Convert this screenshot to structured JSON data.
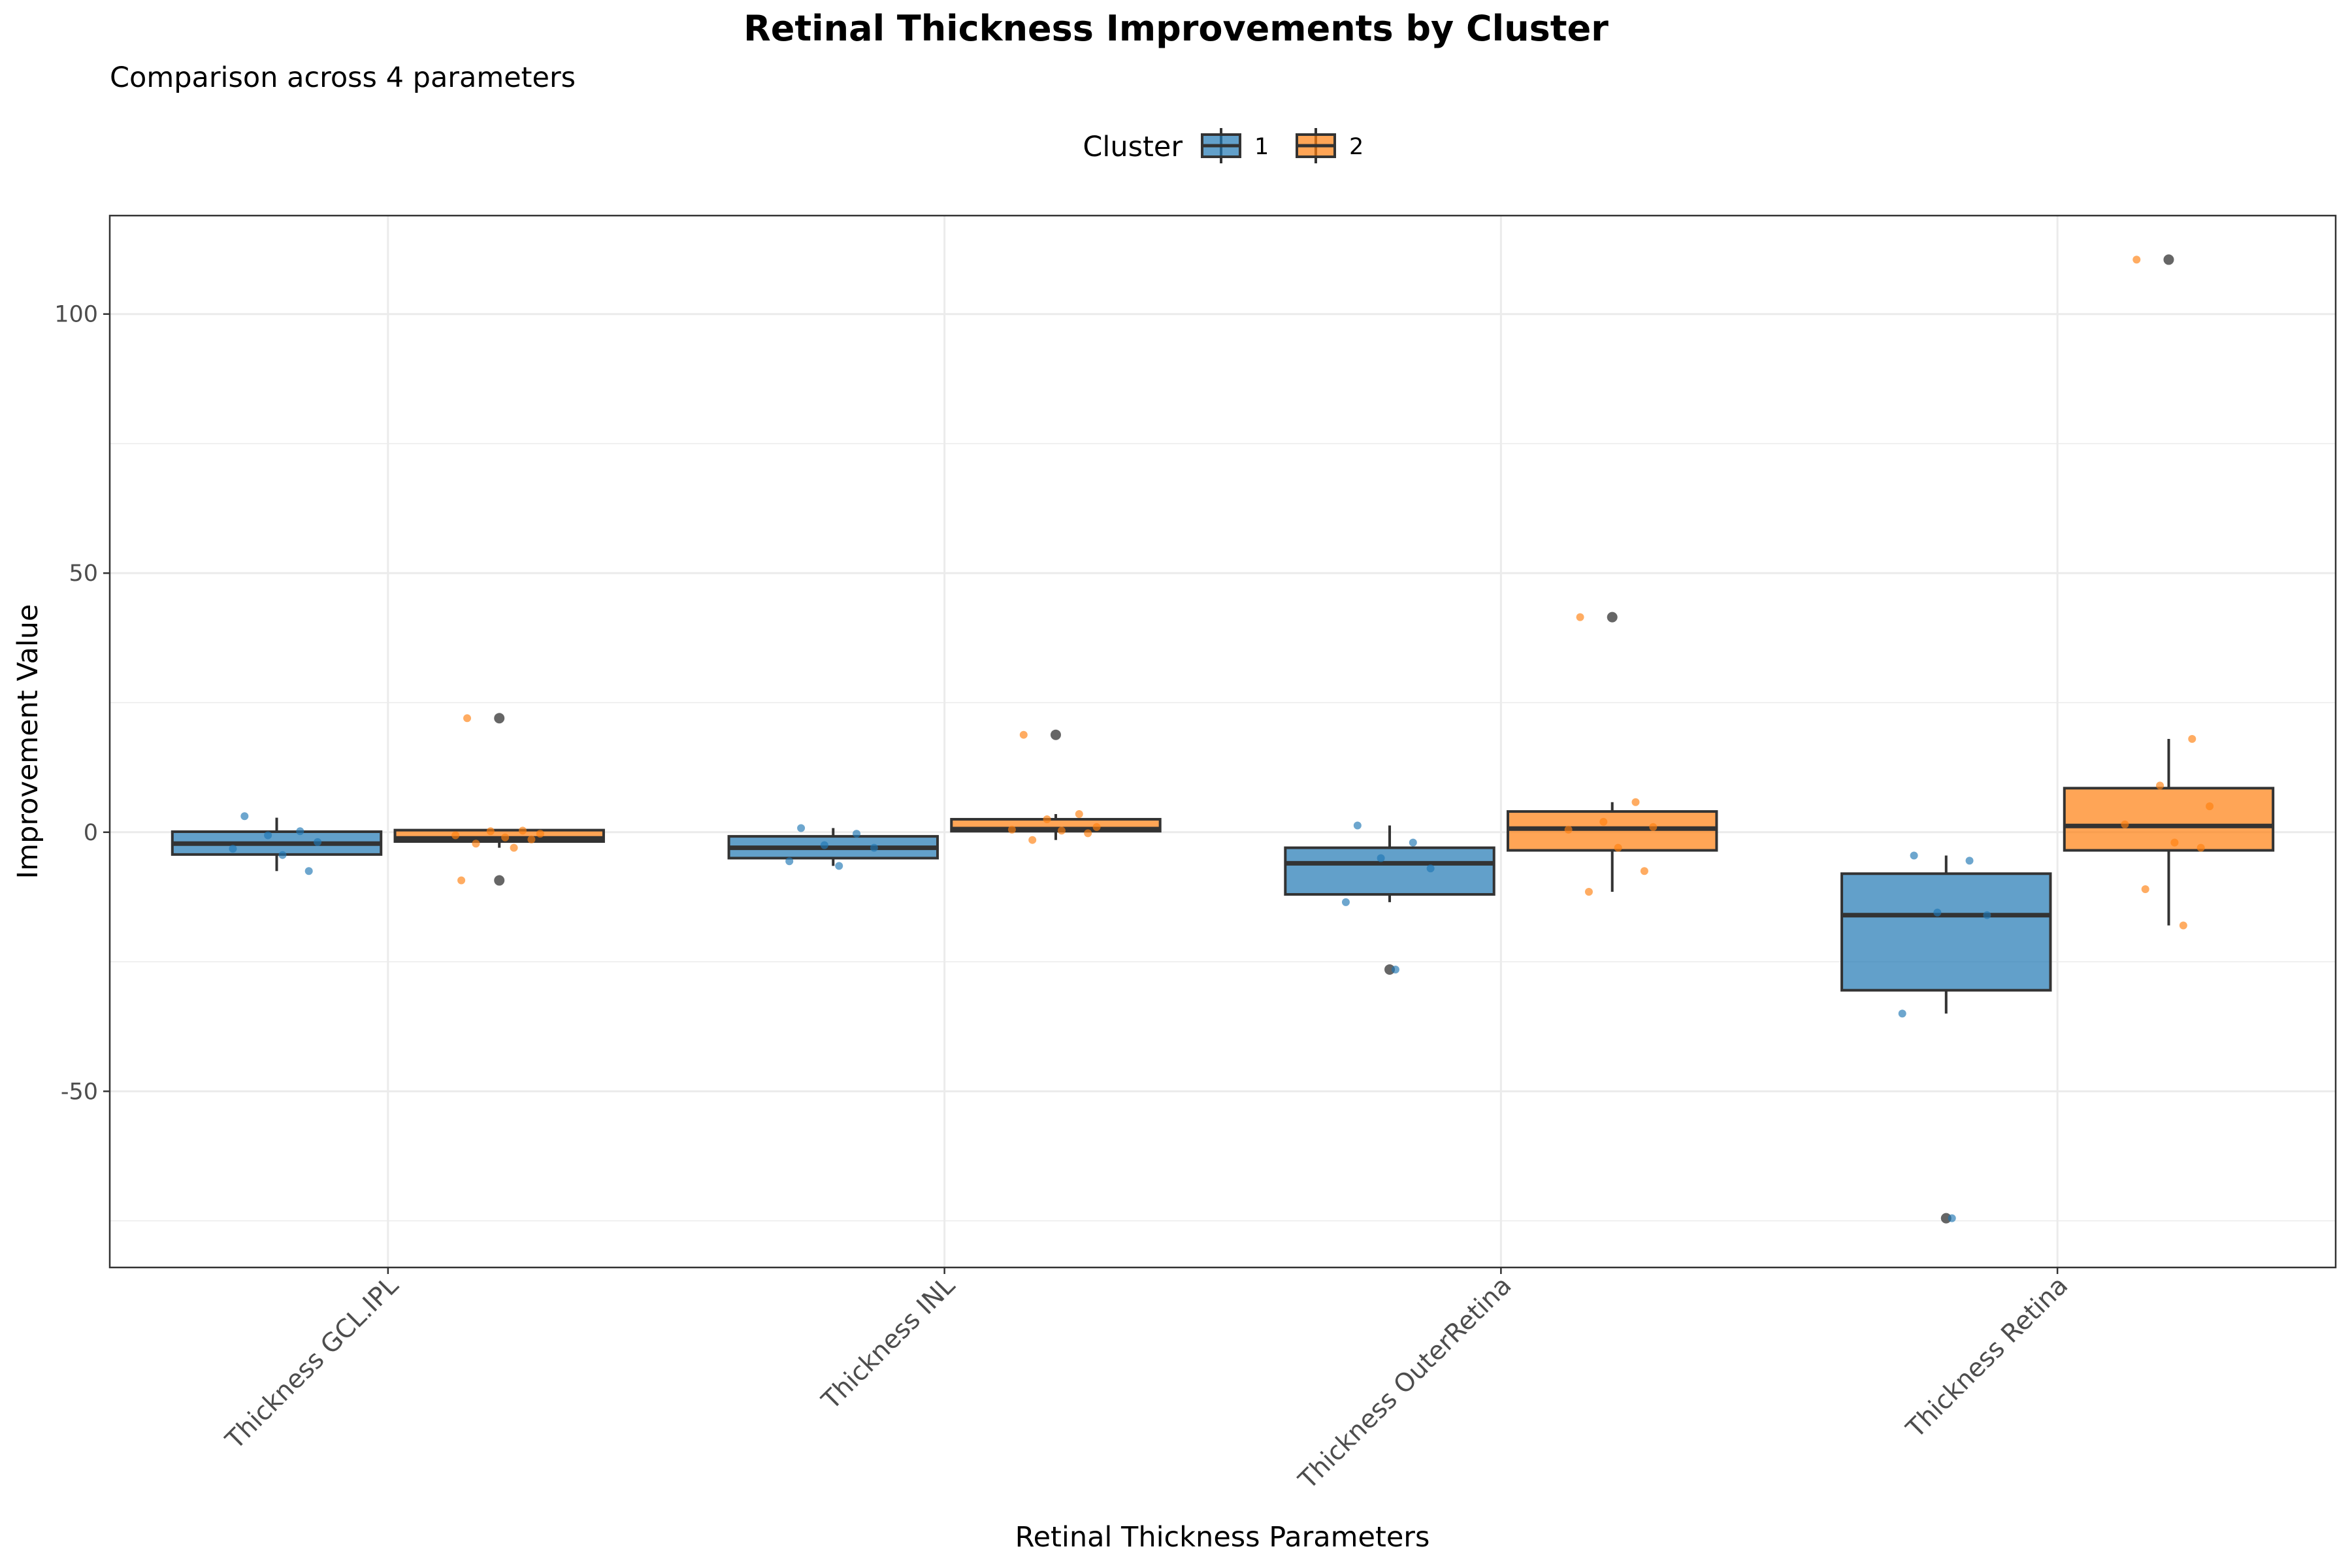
{
  "chart_data": {
    "type": "box",
    "title": "Retinal Thickness Improvements by Cluster",
    "subtitle": "Comparison across 4 parameters",
    "xlabel": "Retinal Thickness Parameters",
    "ylabel": "Improvement Value",
    "ylim": [
      -84,
      119
    ],
    "y_ticks": [
      -50,
      0,
      50,
      100
    ],
    "grid": true,
    "legend": {
      "title": "Cluster",
      "placement": "top"
    },
    "categories": [
      "Thickness GCL.IPL",
      "Thickness INL",
      "Thickness OuterRetina",
      "Thickness Retina"
    ],
    "series": [
      {
        "name": "1",
        "color": "#1f77b4",
        "boxes": [
          {
            "category": "Thickness GCL.IPL",
            "whisker_low": -7.5,
            "q1": -4.3,
            "median": -2.2,
            "q3": 0.1,
            "whisker_high": 2.8,
            "outliers": [],
            "points": [
              3.1,
              0.2,
              -0.6,
              -1.9,
              -3.2,
              -4.4,
              -7.5
            ]
          },
          {
            "category": "Thickness INL",
            "whisker_low": -6.5,
            "q1": -5.0,
            "median": -3.0,
            "q3": -0.8,
            "whisker_high": 0.8,
            "outliers": [],
            "points": [
              0.8,
              -0.3,
              -2.5,
              -3.0,
              -5.6,
              -6.5
            ]
          },
          {
            "category": "Thickness OuterRetina",
            "whisker_low": -13.5,
            "q1": -12.0,
            "median": -6.0,
            "q3": -3.0,
            "whisker_high": 1.3,
            "outliers": [
              -26.5
            ],
            "points": [
              1.3,
              -2.0,
              -5.0,
              -7.0,
              -13.5,
              -26.5
            ]
          },
          {
            "category": "Thickness Retina",
            "whisker_low": -35.0,
            "q1": -30.5,
            "median": -16.0,
            "q3": -8.0,
            "whisker_high": -4.5,
            "outliers": [
              -74.5
            ],
            "points": [
              -4.5,
              -5.5,
              -15.5,
              -16.0,
              -35.0,
              -74.5
            ]
          }
        ]
      },
      {
        "name": "2",
        "color": "#ff7f0e",
        "boxes": [
          {
            "category": "Thickness GCL.IPL",
            "whisker_low": -3.0,
            "q1": -1.8,
            "median": -1.2,
            "q3": 0.4,
            "whisker_high": 0.4,
            "outliers": [
              22.0,
              -9.3
            ],
            "points": [
              22.0,
              0.3,
              0.2,
              -0.3,
              -0.6,
              -1.0,
              -1.4,
              -2.2,
              -3.0,
              -9.3
            ]
          },
          {
            "category": "Thickness INL",
            "whisker_low": -1.5,
            "q1": 0.2,
            "median": 0.6,
            "q3": 2.5,
            "whisker_high": 3.5,
            "outliers": [
              18.8
            ],
            "points": [
              18.8,
              3.5,
              2.5,
              1.0,
              0.5,
              0.3,
              -0.2,
              -1.5
            ]
          },
          {
            "category": "Thickness OuterRetina",
            "whisker_low": -11.5,
            "q1": -3.5,
            "median": 0.7,
            "q3": 4.0,
            "whisker_high": 5.8,
            "outliers": [
              41.5
            ],
            "points": [
              41.5,
              5.8,
              2.0,
              1.0,
              0.5,
              -3.0,
              -7.5,
              -11.5
            ]
          },
          {
            "category": "Thickness Retina",
            "whisker_low": -18.0,
            "q1": -3.5,
            "median": 1.2,
            "q3": 8.5,
            "whisker_high": 18.0,
            "outliers": [
              110.5
            ],
            "points": [
              110.5,
              18.0,
              9.0,
              5.0,
              1.5,
              -2.0,
              -3.0,
              -11.0,
              -18.0
            ]
          }
        ]
      }
    ]
  }
}
